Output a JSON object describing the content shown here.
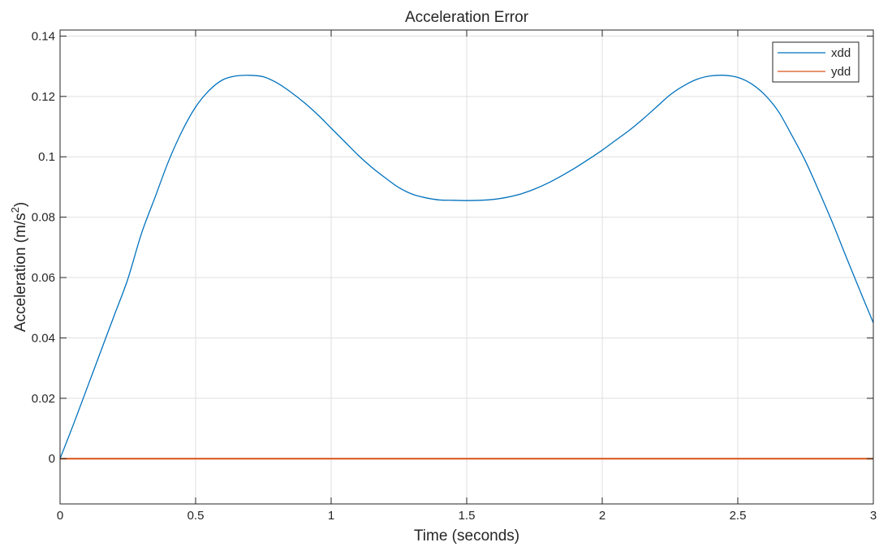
{
  "chart_data": {
    "type": "line",
    "title": "Acceleration Error",
    "xlabel": "Time (seconds)",
    "ylabel_main": "Acceleration (m/s",
    "ylabel_sup": "2",
    "ylabel_close": ")",
    "xlim": [
      0,
      3
    ],
    "ylim": [
      -0.015,
      0.142
    ],
    "xticks": [
      0,
      0.5,
      1,
      1.5,
      2,
      2.5,
      3
    ],
    "xtick_labels": [
      "0",
      "0.5",
      "1",
      "1.5",
      "2",
      "2.5",
      "3"
    ],
    "yticks": [
      0,
      0.02,
      0.04,
      0.06,
      0.08,
      0.1,
      0.12,
      0.14
    ],
    "ytick_labels": [
      "0",
      "0.02",
      "0.04",
      "0.06",
      "0.08",
      "0.1",
      "0.12",
      "0.14"
    ],
    "grid": true,
    "legend_position": "top-right",
    "series": [
      {
        "name": "xdd",
        "color": "#0072BD",
        "x": [
          0,
          0.05,
          0.1,
          0.15,
          0.2,
          0.25,
          0.3,
          0.35,
          0.4,
          0.45,
          0.5,
          0.55,
          0.6,
          0.65,
          0.7,
          0.75,
          0.8,
          0.85,
          0.9,
          0.95,
          1.0,
          1.05,
          1.1,
          1.15,
          1.2,
          1.25,
          1.3,
          1.35,
          1.4,
          1.45,
          1.5,
          1.55,
          1.6,
          1.65,
          1.7,
          1.75,
          1.8,
          1.85,
          1.9,
          1.95,
          2.0,
          2.05,
          2.1,
          2.15,
          2.2,
          2.25,
          2.3,
          2.35,
          2.4,
          2.45,
          2.5,
          2.55,
          2.6,
          2.65,
          2.7,
          2.75,
          2.8,
          2.85,
          2.9,
          2.95,
          3.0
        ],
        "y": [
          0,
          0.0115,
          0.0235,
          0.0355,
          0.0475,
          0.0595,
          0.0745,
          0.0865,
          0.0985,
          0.1085,
          0.1165,
          0.122,
          0.1255,
          0.1268,
          0.127,
          0.1265,
          0.1245,
          0.1215,
          0.118,
          0.114,
          0.1095,
          0.105,
          0.1005,
          0.0965,
          0.093,
          0.0898,
          0.0876,
          0.0864,
          0.0857,
          0.0856,
          0.0855,
          0.0856,
          0.0859,
          0.0866,
          0.0877,
          0.0893,
          0.0913,
          0.0937,
          0.0963,
          0.0992,
          0.1022,
          0.1055,
          0.1088,
          0.1125,
          0.1165,
          0.1205,
          0.1235,
          0.1257,
          0.1268,
          0.127,
          0.1263,
          0.1242,
          0.1205,
          0.115,
          0.107,
          0.0985,
          0.0885,
          0.078,
          0.0668,
          0.0558,
          0.045
        ]
      },
      {
        "name": "ydd",
        "color": "#D95319",
        "x": [
          0,
          3
        ],
        "y": [
          0,
          0
        ]
      }
    ]
  }
}
